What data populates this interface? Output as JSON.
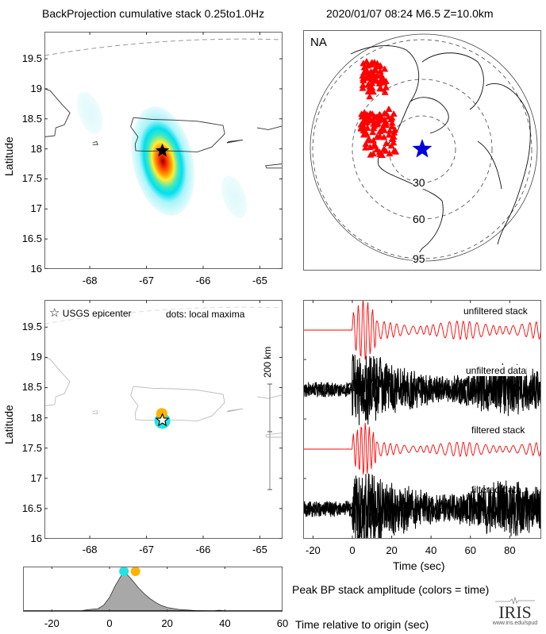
{
  "header": {
    "left_title": "BackProjection cumulative stack 0.25to1.0Hz",
    "right_title": "2020/01/07 08:24  M6.5  Z=10.0km"
  },
  "colors": {
    "stack_red": "#ff0000",
    "station_red": "#ff0000",
    "epicenter_blue": "#0000dd",
    "cyan": "#22e3e3",
    "orange": "#ffb300",
    "envelope_gray": "#a8a8a8",
    "frame": "#666666"
  },
  "chart_data": [
    {
      "id": "bp-heatmap",
      "type": "heatmap",
      "title": "BackProjection cumulative stack 0.25to1.0Hz",
      "xlabel": "",
      "ylabel": "Latitude",
      "xlim": [
        -68.8,
        -64.6
      ],
      "ylim": [
        16,
        19.95
      ],
      "xticks": [
        "-68",
        "-67",
        "-66",
        "-65"
      ],
      "xtick_values": [
        -68,
        -67,
        -66,
        -65
      ],
      "yticks": [
        "16",
        "16.5",
        "17",
        "17.5",
        "18",
        "18.5",
        "19",
        "19.5"
      ],
      "ytick_values": [
        16,
        16.5,
        17,
        17.5,
        18,
        18.5,
        19,
        19.5
      ],
      "peak": {
        "lon": -66.72,
        "lat": 17.97
      },
      "epicenter": {
        "lon": -66.72,
        "lat": 17.97
      },
      "secondary_lobes": [
        {
          "lon": -68.0,
          "lat": 18.6
        },
        {
          "lon": -65.45,
          "lat": 17.2
        }
      ]
    },
    {
      "id": "station-map",
      "type": "scatter",
      "label": "NA",
      "distance_rings_deg": [
        30,
        60,
        95
      ],
      "ring_labels": [
        "30",
        "60",
        "95"
      ],
      "epicenter_marker": "blue-star",
      "stations_marker": "red-triangle"
    },
    {
      "id": "local-maxima-map",
      "type": "scatter",
      "ylabel": "Latitude",
      "xlim": [
        -68.8,
        -64.6
      ],
      "ylim": [
        16,
        19.95
      ],
      "xticks": [
        "-68",
        "-67",
        "-66",
        "-65"
      ],
      "xtick_values": [
        -68,
        -67,
        -66,
        -65
      ],
      "yticks": [
        "16",
        "16.5",
        "17",
        "17.5",
        "18",
        "18.5",
        "19",
        "19.5"
      ],
      "ytick_values": [
        16,
        16.5,
        17,
        17.5,
        18,
        18.5,
        19,
        19.5
      ],
      "legend": [
        "USGS epicenter",
        "dots: local maxima"
      ],
      "scale_bar_label": "200 km",
      "points": [
        {
          "lon": -66.72,
          "lat": 17.95,
          "time_sec": 5,
          "color": "#22e3e3"
        },
        {
          "lon": -66.73,
          "lat": 18.07,
          "time_sec": 9,
          "color": "#ffb300"
        }
      ],
      "epicenter": {
        "lon": -66.72,
        "lat": 17.96
      }
    },
    {
      "id": "seismograms",
      "type": "line",
      "xlabel": "Time (sec)",
      "xlim": [
        -25,
        96
      ],
      "xticks": [
        "-20",
        "0",
        "20",
        "40",
        "60",
        "80"
      ],
      "xtick_values": [
        -20,
        0,
        20,
        40,
        60,
        80
      ],
      "traces": [
        "unfiltered stack",
        "unfiltered data",
        "filtered stack",
        "filtered data"
      ]
    },
    {
      "id": "peak-amplitude",
      "type": "area",
      "title": "Peak BP stack amplitude (colors = time)",
      "xlabel": "Time relative to origin (sec)",
      "xlim": [
        -30,
        60
      ],
      "xticks": [
        "-20",
        "0",
        "20",
        "40",
        "60"
      ],
      "xtick_values": [
        -20,
        0,
        20,
        40,
        60
      ],
      "x": [
        -30,
        -10,
        -8,
        -4,
        -2,
        0,
        2,
        4,
        5,
        6,
        8,
        10,
        12,
        14,
        16,
        18,
        20,
        24,
        30,
        36,
        38,
        40,
        60
      ],
      "y": [
        0,
        0,
        0.03,
        0.06,
        0.15,
        0.35,
        0.65,
        0.9,
        1.0,
        0.95,
        0.78,
        0.6,
        0.45,
        0.32,
        0.22,
        0.14,
        0.09,
        0.04,
        0.01,
        0.0,
        0.02,
        0.0,
        0
      ],
      "maxima_markers": [
        {
          "time_sec": 5,
          "color": "#22e3e3"
        },
        {
          "time_sec": 9,
          "color": "#ffb300"
        }
      ]
    }
  ],
  "logo": {
    "name": "IRIS",
    "url_text": "www.iris.edu/spud"
  }
}
